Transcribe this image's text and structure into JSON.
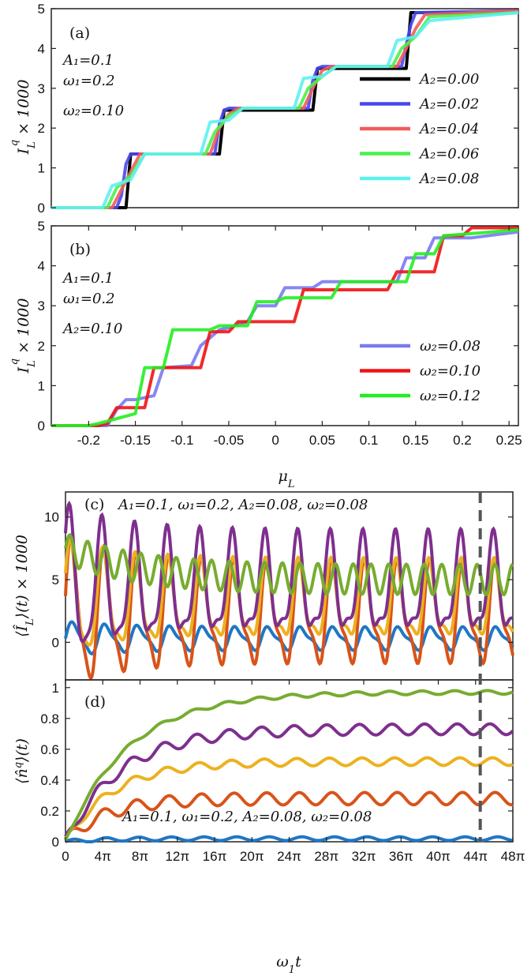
{
  "chart_data": [
    {
      "panel": "(a)",
      "type": "line",
      "xlim": [
        -0.24,
        0.26
      ],
      "ylim": [
        0,
        5
      ],
      "yticks": [
        "0",
        "1",
        "2",
        "3",
        "4",
        "5"
      ],
      "ylabel": "I_L^q × 1000",
      "annotations": [
        "A₁=0.1",
        "ω₁=0.2",
        "ω₂=0.10"
      ],
      "series": [
        {
          "name": "A₂=0.00",
          "color": "#000000",
          "x": [
            -0.24,
            -0.16,
            -0.155,
            -0.06,
            -0.055,
            0.04,
            0.045,
            0.14,
            0.145,
            0.2,
            0.26
          ],
          "y": [
            0,
            0,
            1.35,
            1.35,
            2.45,
            2.45,
            3.5,
            3.5,
            4.9,
            4.9,
            4.9
          ]
        },
        {
          "name": "A₂=0.02",
          "color": "#4848ee",
          "x": [
            -0.24,
            -0.17,
            -0.165,
            -0.16,
            -0.155,
            -0.065,
            -0.06,
            -0.055,
            -0.05,
            0.035,
            0.04,
            0.045,
            0.05,
            0.135,
            0.14,
            0.145,
            0.15,
            0.26
          ],
          "y": [
            0,
            0,
            0.3,
            1.1,
            1.35,
            1.35,
            2.1,
            2.45,
            2.5,
            2.5,
            3.2,
            3.5,
            3.55,
            3.55,
            4.1,
            4.6,
            4.9,
            4.95
          ]
        },
        {
          "name": "A₂=0.04",
          "color": "#f25c5c",
          "x": [
            -0.24,
            -0.175,
            -0.165,
            -0.155,
            -0.145,
            -0.07,
            -0.06,
            -0.05,
            -0.04,
            0.03,
            0.04,
            0.05,
            0.06,
            0.13,
            0.14,
            0.15,
            0.16,
            0.26
          ],
          "y": [
            0,
            0,
            0.45,
            0.9,
            1.35,
            1.35,
            2.0,
            2.35,
            2.5,
            2.5,
            3.0,
            3.45,
            3.55,
            3.55,
            4.0,
            4.5,
            4.85,
            4.95
          ]
        },
        {
          "name": "A₂=0.06",
          "color": "#4cf04c",
          "x": [
            -0.24,
            -0.18,
            -0.17,
            -0.155,
            -0.14,
            -0.075,
            -0.065,
            -0.05,
            -0.035,
            0.025,
            0.035,
            0.05,
            0.065,
            0.125,
            0.135,
            0.15,
            0.165,
            0.26
          ],
          "y": [
            0,
            0,
            0.5,
            0.8,
            1.35,
            1.35,
            1.9,
            2.3,
            2.5,
            2.5,
            3.0,
            3.3,
            3.55,
            3.55,
            4.0,
            4.3,
            4.8,
            4.9
          ]
        },
        {
          "name": "A₂=0.08",
          "color": "#5ff0f0",
          "x": [
            -0.24,
            -0.185,
            -0.175,
            -0.155,
            -0.14,
            -0.08,
            -0.07,
            -0.05,
            -0.035,
            0.02,
            0.03,
            0.05,
            0.065,
            0.12,
            0.13,
            0.15,
            0.165,
            0.26
          ],
          "y": [
            0,
            0,
            0.55,
            0.7,
            1.35,
            1.35,
            2.15,
            2.2,
            2.5,
            2.5,
            3.25,
            3.3,
            3.55,
            3.55,
            4.2,
            4.3,
            4.7,
            4.9
          ]
        }
      ]
    },
    {
      "panel": "(b)",
      "type": "line",
      "xlim": [
        -0.24,
        0.26
      ],
      "ylim": [
        0,
        5
      ],
      "yticks": [
        "0",
        "1",
        "2",
        "3",
        "4",
        "5"
      ],
      "xticks": [
        "-0.2",
        "-0.15",
        "-0.1",
        "-0.05",
        "0",
        "0.05",
        "0.1",
        "0.15",
        "0.2",
        "0.25"
      ],
      "xlabel": "μ_L",
      "ylabel": "I_L^q × 1000",
      "annotations": [
        "A₁=0.1",
        "ω₁=0.2",
        "A₂=0.10"
      ],
      "series": [
        {
          "name": "ω₂=0.08",
          "color": "#7a7aee",
          "x": [
            -0.24,
            -0.18,
            -0.17,
            -0.16,
            -0.15,
            -0.13,
            -0.12,
            -0.09,
            -0.08,
            -0.06,
            -0.05,
            -0.03,
            -0.02,
            0.0,
            0.01,
            0.04,
            0.05,
            0.13,
            0.14,
            0.16,
            0.17,
            0.2,
            0.21,
            0.26
          ],
          "y": [
            0,
            0,
            0.4,
            0.65,
            0.65,
            0.75,
            1.45,
            1.5,
            2.0,
            2.4,
            2.45,
            2.6,
            3.0,
            3.0,
            3.45,
            3.45,
            3.6,
            3.6,
            4.2,
            4.2,
            4.7,
            4.7,
            4.7,
            4.85
          ]
        },
        {
          "name": "ω₂=0.10",
          "color": "#ee1414",
          "x": [
            -0.24,
            -0.19,
            -0.18,
            -0.17,
            -0.16,
            -0.14,
            -0.13,
            -0.08,
            -0.07,
            -0.05,
            -0.04,
            -0.02,
            -0.01,
            0.02,
            0.03,
            0.12,
            0.13,
            0.17,
            0.18,
            0.2,
            0.21,
            0.26
          ],
          "y": [
            0,
            0,
            0.05,
            0.45,
            0.45,
            0.45,
            1.45,
            1.45,
            2.35,
            2.35,
            2.6,
            2.6,
            2.6,
            2.6,
            3.4,
            3.4,
            3.85,
            3.85,
            4.75,
            4.75,
            4.95,
            4.95
          ]
        },
        {
          "name": "ω₂=0.12",
          "color": "#22ee22",
          "x": [
            -0.24,
            -0.2,
            -0.19,
            -0.15,
            -0.14,
            -0.12,
            -0.11,
            -0.07,
            -0.06,
            -0.03,
            -0.02,
            0.0,
            0.01,
            0.06,
            0.07,
            0.14,
            0.15,
            0.17,
            0.18,
            0.26
          ],
          "y": [
            0,
            0,
            0.05,
            0.3,
            1.45,
            1.45,
            2.4,
            2.4,
            2.5,
            2.5,
            3.1,
            3.1,
            3.2,
            3.2,
            3.6,
            3.6,
            4.3,
            4.3,
            4.75,
            4.9
          ]
        }
      ]
    },
    {
      "panel": "(c)",
      "type": "line",
      "title": "A₁=0.1,  ω₁=0.2,  A₂=0.08,  ω₂=0.08",
      "xlim": [
        0,
        48
      ],
      "ylim": [
        -3,
        12
      ],
      "yticks": [
        "0",
        "5",
        "10"
      ],
      "ylabel": "⟨Î_L⟩(t) × 1000",
      "marker_x": 44.5,
      "series": [
        {
          "name": "blue",
          "color": "#1f77c4",
          "base": 0.3,
          "amp": 0.8
        },
        {
          "name": "orange",
          "color": "#d95319",
          "base": 2.0,
          "amp": 3.6
        },
        {
          "name": "yellow",
          "color": "#edb120",
          "base": 3.0,
          "amp": 2.8
        },
        {
          "name": "purple",
          "color": "#7e2f8e",
          "base": 4.2,
          "amp": 3.6
        },
        {
          "name": "green",
          "color": "#77ac30",
          "base": 5.0,
          "amp": 1.2
        }
      ]
    },
    {
      "panel": "(d)",
      "type": "line",
      "title": "A₁=0.1,  ω₁=0.2,  A₂=0.08,  ω₂=0.08",
      "xlim": [
        0,
        48
      ],
      "ylim": [
        0,
        1.05
      ],
      "yticks": [
        "0",
        "0.2",
        "0.4",
        "0.6",
        "0.8",
        "1"
      ],
      "xticks": [
        "0",
        "4π",
        "8π",
        "12π",
        "16π",
        "20π",
        "24π",
        "28π",
        "32π",
        "36π",
        "40π",
        "44π",
        "48π"
      ],
      "xlabel": "ω₁t",
      "ylabel": "⟨n̂^q⟩(t)",
      "marker_x": 44.5,
      "series": [
        {
          "name": "blue",
          "color": "#1f77c4",
          "sat": 0.02,
          "wig": 0.012
        },
        {
          "name": "orange",
          "color": "#d95319",
          "sat": 0.28,
          "wig": 0.04
        },
        {
          "name": "yellow",
          "color": "#edb120",
          "sat": 0.52,
          "wig": 0.025
        },
        {
          "name": "purple",
          "color": "#7e2f8e",
          "sat": 0.73,
          "wig": 0.035
        },
        {
          "name": "green",
          "color": "#77ac30",
          "sat": 0.97,
          "wig": 0.012
        }
      ]
    }
  ],
  "legend_a": [
    "A₂=0.00",
    "A₂=0.02",
    "A₂=0.04",
    "A₂=0.06",
    "A₂=0.08"
  ],
  "legend_b": [
    "ω₂=0.08",
    "ω₂=0.10",
    "ω₂=0.12"
  ]
}
